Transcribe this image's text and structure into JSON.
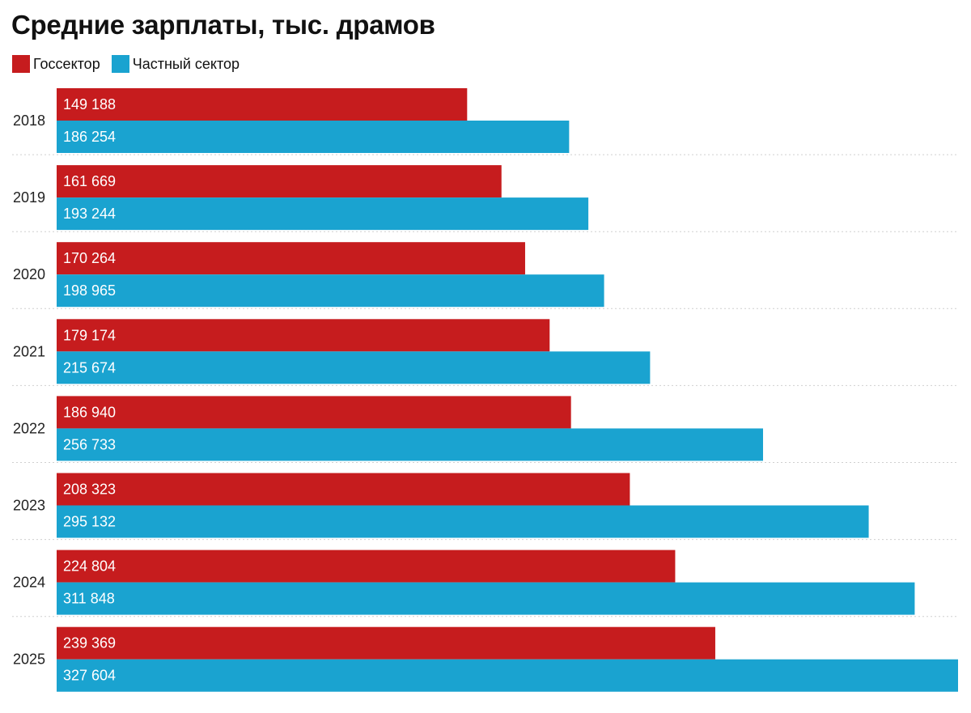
{
  "title": "Средние зарплаты, тыс. драмов",
  "colors": {
    "gov": "#c61c1e",
    "private": "#1aa3d0",
    "separator": "#cfcfcf"
  },
  "chart_data": {
    "type": "bar",
    "orientation": "horizontal",
    "title": "Средние зарплаты, тыс. драмов",
    "categories": [
      "2018",
      "2019",
      "2020",
      "2021",
      "2022",
      "2023",
      "2024",
      "2025"
    ],
    "series": [
      {
        "name": "Госсектор",
        "color": "#c61c1e",
        "values": [
          149188,
          161669,
          170264,
          179174,
          186940,
          208323,
          224804,
          239369
        ],
        "labels": [
          "149 188",
          "161 669",
          "170 264",
          "179 174",
          "186 940",
          "208 323",
          "224 804",
          "239 369"
        ]
      },
      {
        "name": "Частный сектор",
        "color": "#1aa3d0",
        "values": [
          186254,
          193244,
          198965,
          215674,
          256733,
          295132,
          311848,
          327604
        ],
        "labels": [
          "186 254",
          "193 244",
          "198 965",
          "215 674",
          "256 733",
          "295 132",
          "311 848",
          "327 604"
        ]
      }
    ],
    "xlim": [
      0,
      327604
    ],
    "grid": false,
    "legend": "top-left"
  }
}
